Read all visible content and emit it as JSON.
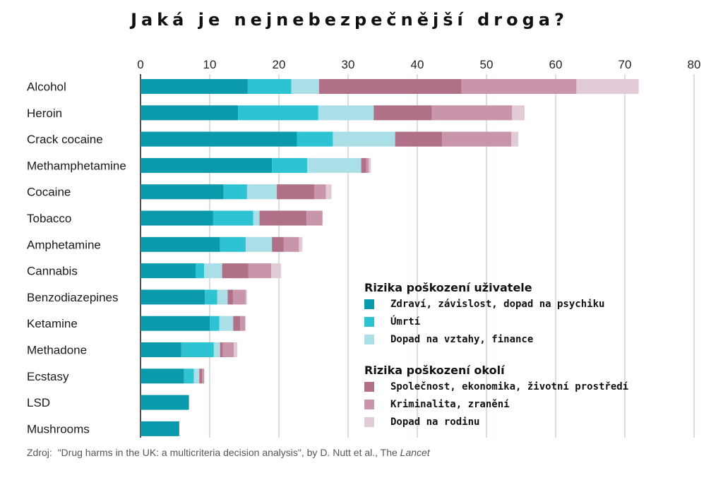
{
  "chart_data": {
    "type": "bar",
    "orientation": "horizontal",
    "stacked": true,
    "title": "Jaká je nejnebezpečnější droga?",
    "xlim": [
      0,
      80
    ],
    "x_ticks": [
      "0",
      "10",
      "20",
      "30",
      "40",
      "50",
      "60",
      "70",
      "80"
    ],
    "grid": "vertical lines",
    "categories": [
      "Alcohol",
      "Heroin",
      "Crack cocaine",
      "Methamphetamine",
      "Cocaine",
      "Tobacco",
      "Amphetamine",
      "Cannabis",
      "Benzodiazepines",
      "Ketamine",
      "Methadone",
      "Ecstasy",
      "LSD",
      "Mushrooms"
    ],
    "series": [
      {
        "name": "Zdraví, závislost, dopad na psychiku",
        "color": "#0a9aab",
        "group": "users",
        "values": [
          15.5,
          14.1,
          22.6,
          19.0,
          12.0,
          10.5,
          11.5,
          8.0,
          9.3,
          10.0,
          5.9,
          6.3,
          7.0,
          5.6
        ]
      },
      {
        "name": "Úmrtí",
        "color": "#2ec3d3",
        "group": "users",
        "values": [
          6.3,
          11.6,
          5.2,
          5.1,
          3.4,
          5.8,
          3.7,
          1.2,
          1.8,
          1.4,
          4.7,
          1.4,
          0,
          0
        ]
      },
      {
        "name": "Dopad na vztahy, finance",
        "color": "#abdfe8",
        "group": "users",
        "values": [
          4.0,
          8.0,
          9.0,
          7.8,
          4.3,
          0.9,
          3.8,
          2.6,
          1.5,
          2.0,
          0.9,
          0.8,
          0,
          0
        ]
      },
      {
        "name": "Společnost, ekonomika, životní prostředí",
        "color": "#b07088",
        "group": "others",
        "values": [
          20.6,
          8.4,
          6.8,
          0.7,
          5.4,
          6.8,
          1.7,
          3.8,
          0.8,
          1.0,
          0.4,
          0.4,
          0,
          0
        ]
      },
      {
        "name": "Kriminalita, zranění",
        "color": "#c995ab",
        "group": "others",
        "values": [
          16.6,
          11.6,
          10.0,
          0.4,
          1.7,
          2.3,
          2.2,
          3.3,
          1.8,
          0.7,
          1.6,
          0.3,
          0,
          0
        ]
      },
      {
        "name": "Dopad na rodinu",
        "color": "#e2cbd6",
        "group": "others",
        "values": [
          9.0,
          1.8,
          1.0,
          0.3,
          0.8,
          0,
          0.5,
          1.4,
          0.2,
          0.1,
          0.5,
          0,
          0,
          0
        ]
      }
    ]
  },
  "legend": {
    "position": "right",
    "groups": [
      {
        "heading": "Rizika poškození uživatele",
        "items": [
          {
            "label": "Zdraví, závislost, dopad na psychiku",
            "color": "#0a9aab"
          },
          {
            "label": "Úmrtí",
            "color": "#2ec3d3"
          },
          {
            "label": "Dopad na vztahy, finance",
            "color": "#abdfe8"
          }
        ]
      },
      {
        "heading": "Rizika poškození okolí",
        "items": [
          {
            "label": "Společnost, ekonomika, životní prostředí",
            "color": "#b07088"
          },
          {
            "label": "Kriminalita, zranění",
            "color": "#c995ab"
          },
          {
            "label": "Dopad na rodinu",
            "color": "#e2cbd6"
          }
        ]
      }
    ]
  },
  "source": {
    "prefix": "Zdroj:",
    "text": "\"Drug harms in the UK: a multicriteria decision analysis\", by D. Nutt et al., The ",
    "journal": "Lancet"
  },
  "colors": {
    "gridline": "#b8cbd2",
    "axis": "#222222"
  }
}
